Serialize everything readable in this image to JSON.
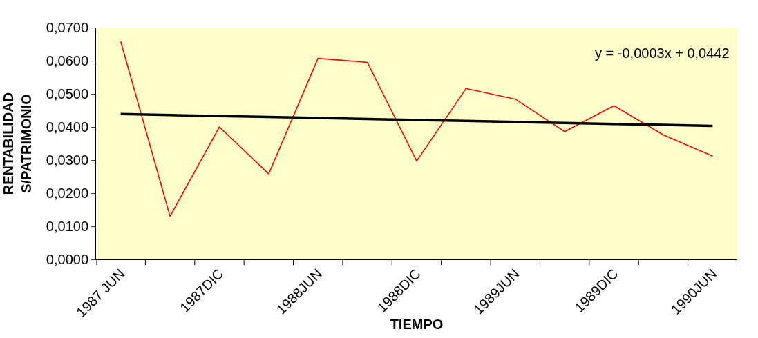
{
  "chart_data": {
    "type": "line",
    "xlabel": "TIEMPO",
    "ylabel": "RENTABILIDAD\nS/PATRIMONIO",
    "categories": [
      "1987 JUN",
      null,
      "1987DIC",
      null,
      "1988JUN",
      null,
      "1988DIC",
      null,
      "1989JUN",
      null,
      "1989DIC",
      null,
      "1990JUN"
    ],
    "series": [
      {
        "color": "#ff0000",
        "values": [
          0.0658,
          0.013,
          0.04,
          0.0258,
          0.0607,
          0.0595,
          0.0297,
          0.0516,
          0.0484,
          0.0386,
          0.0464,
          0.0376,
          0.0312
        ]
      },
      {
        "color": "#000000",
        "values": [
          0.0439,
          0.0436,
          0.0433,
          0.043,
          0.0427,
          0.0424,
          0.0421,
          0.0418,
          0.0415,
          0.0412,
          0.0409,
          0.0406,
          0.0403
        ]
      }
    ],
    "ylim": [
      0,
      0.07
    ],
    "yticks": [
      {
        "value": 0,
        "label": "0,0000"
      },
      {
        "value": 0.01,
        "label": "0,0100"
      },
      {
        "value": 0.02,
        "label": "0,0200"
      },
      {
        "value": 0.03,
        "label": "0,0300"
      },
      {
        "value": 0.04,
        "label": "0,0400"
      },
      {
        "value": 0.05,
        "label": "0,0500"
      },
      {
        "value": 0.06,
        "label": "0,0600"
      },
      {
        "value": 0.07,
        "label": "0,0700"
      }
    ],
    "annotations": [
      "y = -0,0003x + 0,0442"
    ],
    "grid": false,
    "legend": false,
    "marker": "none"
  }
}
